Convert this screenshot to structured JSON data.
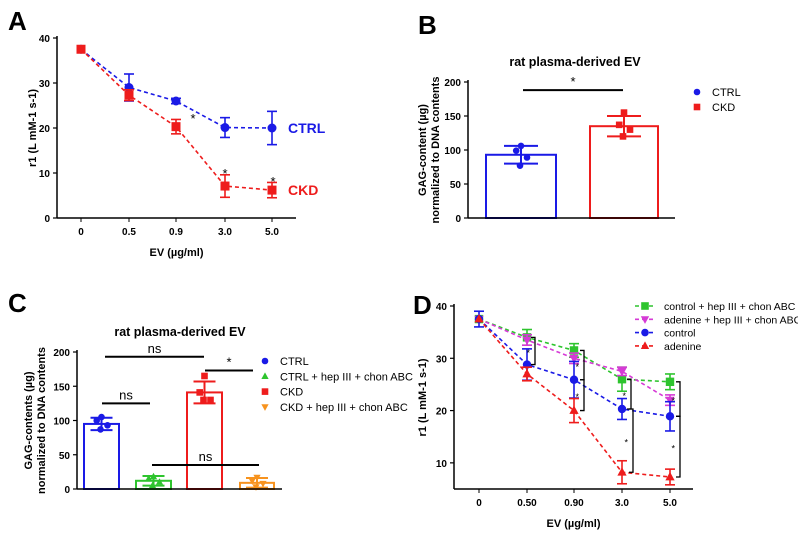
{
  "chart_data": [
    {
      "panel": "A",
      "type": "line",
      "title": "",
      "xlabel": "EV (µg/ml)",
      "ylabel": "r1 (L mM-1 s-1)",
      "categories": [
        "0",
        "0.5",
        "0.9",
        "3.0",
        "5.0"
      ],
      "ylim": [
        0,
        40
      ],
      "yticks": [
        0,
        10,
        20,
        30,
        40
      ],
      "series": [
        {
          "name": "CTRL",
          "color": "#1a1ae6",
          "marker": "circle",
          "values": [
            37.5,
            29,
            26,
            20.1,
            20
          ],
          "errors": [
            0,
            3,
            0.6,
            2.2,
            3.7
          ]
        },
        {
          "name": "CKD",
          "color": "#ee1c1c",
          "marker": "square",
          "values": [
            37.5,
            27.3,
            20.3,
            7.1,
            6.2
          ],
          "errors": [
            0,
            1.2,
            1.6,
            2.5,
            1.7
          ]
        }
      ],
      "annotations": [
        {
          "text": "*",
          "at": "between 0.9 and 3.0, CTRL"
        },
        {
          "text": "*",
          "at": "3.0"
        },
        {
          "text": "*",
          "at": "5.0"
        }
      ]
    },
    {
      "panel": "B",
      "type": "bar",
      "title": "rat plasma-derived EV",
      "ylabel": "GAG-content (µg)\nnormalized to DNA contents",
      "ylabel_lines": [
        "GAG-content (µg)",
        "normalized to DNA contents"
      ],
      "ylim": [
        0,
        200
      ],
      "yticks": [
        0,
        50,
        100,
        150,
        200
      ],
      "legend": "right",
      "bars": [
        {
          "name": "CTRL",
          "color": "#1a1ae6",
          "marker": "circle",
          "value": 93,
          "sd": 13,
          "points": [
            106,
            99,
            89,
            77
          ]
        },
        {
          "name": "CKD",
          "color": "#ee1c1c",
          "marker": "square",
          "value": 135,
          "sd": 15,
          "points": [
            155,
            137,
            130,
            120
          ]
        }
      ],
      "significance": [
        {
          "from": 0,
          "to": 1,
          "y": 188,
          "label": "*"
        }
      ]
    },
    {
      "panel": "C",
      "type": "bar",
      "title": "rat plasma-derived EV",
      "ylabel_lines": [
        "GAG-contents (µg)",
        "normalized to DNA contents"
      ],
      "ylim": [
        0,
        200
      ],
      "yticks": [
        0,
        50,
        100,
        150,
        200
      ],
      "legend": "right",
      "bars": [
        {
          "name": "CTRL",
          "color": "#1a1ae6",
          "marker": "circle",
          "value": 95,
          "sd": 9,
          "points": [
            105,
            100,
            93,
            87
          ]
        },
        {
          "name": "CTRL + hep III + chon ABC",
          "color": "#2ec42e",
          "marker": "triangle",
          "value": 12,
          "sd": 7,
          "points": [
            18,
            15,
            10,
            5
          ]
        },
        {
          "name": "CKD",
          "color": "#ee1c1c",
          "marker": "square",
          "value": 141,
          "sd": 16,
          "points": [
            165,
            141,
            130,
            130
          ]
        },
        {
          "name": "CKD + hep III + chon ABC",
          "color": "#f7931e",
          "marker": "triangle-down",
          "value": 9,
          "sd": 7,
          "points": [
            17,
            12,
            8,
            3
          ]
        }
      ],
      "significance": [
        {
          "from": 0,
          "to": 2,
          "y": 193,
          "label": "ns"
        },
        {
          "from": 0,
          "to": 1,
          "y": 125,
          "label": "ns"
        },
        {
          "from": 1,
          "to": 3,
          "y": 35,
          "label": "ns"
        },
        {
          "from": 2,
          "to": 3,
          "y": 173,
          "label": "*"
        }
      ]
    },
    {
      "panel": "D",
      "type": "line",
      "title": "",
      "xlabel": "EV (µg/ml)",
      "ylabel": "r1 (L mM-1 s-1)",
      "categories": [
        "0",
        "0.50",
        "0.90",
        "3.0",
        "5.0"
      ],
      "ylim": [
        5,
        40
      ],
      "yticks": [
        10,
        20,
        30,
        40
      ],
      "legend": "top-right",
      "series": [
        {
          "name": "control + hep III + chon ABC",
          "color": "#2ec42e",
          "marker": "square",
          "values": [
            37.5,
            34,
            31.5,
            26,
            25.5
          ],
          "errors": [
            0,
            1.5,
            1.3,
            2.3,
            1.5
          ]
        },
        {
          "name": "adenine + hep III + chon ABC",
          "color": "#d63ad6",
          "marker": "triangle-down",
          "values": [
            37.5,
            33.5,
            30,
            27.5,
            22
          ],
          "errors": [
            0,
            1,
            1,
            0.8,
            1
          ]
        },
        {
          "name": "control",
          "color": "#1a1ae6",
          "marker": "circle",
          "values": [
            37.5,
            28.8,
            25.9,
            20.3,
            18.9
          ],
          "errors": [
            1.5,
            3,
            3.5,
            2,
            2.8
          ]
        },
        {
          "name": "adenine",
          "color": "#ee1c1c",
          "marker": "triangle",
          "values": [
            37.5,
            27,
            20,
            8.2,
            7.3
          ],
          "errors": [
            0,
            1.3,
            2.3,
            2.2,
            1.5
          ]
        }
      ],
      "brackets": [
        {
          "x": "0.50",
          "from": 34,
          "to": 28.8,
          "label": "*"
        },
        {
          "x": "0.90",
          "from": 31.5,
          "to": 25.9,
          "label": "*"
        },
        {
          "x": "0.90",
          "from": 25.9,
          "to": 20,
          "label": "*"
        },
        {
          "x": "3.0",
          "from": 26,
          "to": 20.3,
          "label": "*"
        },
        {
          "x": "3.0",
          "from": 20.3,
          "to": 8.2,
          "label": "*"
        },
        {
          "x": "5.0",
          "from": 25.5,
          "to": 18.9,
          "label": "*"
        },
        {
          "x": "5.0",
          "from": 18.9,
          "to": 7.3,
          "label": "*"
        }
      ]
    }
  ],
  "panel_letters": [
    "A",
    "B",
    "C",
    "D"
  ]
}
